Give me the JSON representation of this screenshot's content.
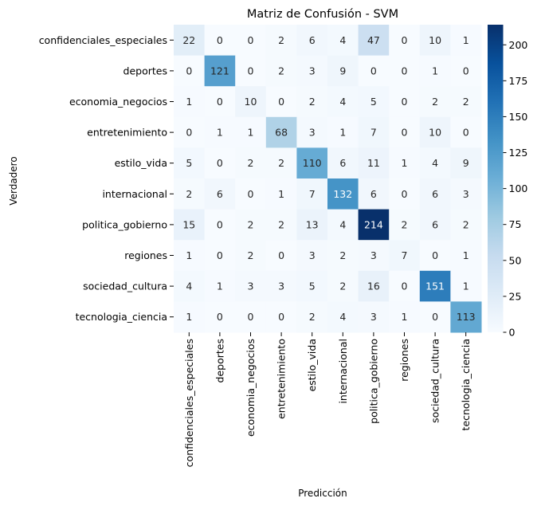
{
  "chart_data": {
    "type": "heatmap",
    "title": "Matriz de Confusión - SVM",
    "xlabel": "Predicción",
    "ylabel": "Verdadero",
    "categories": [
      "confidenciales_especiales",
      "deportes",
      "economia_negocios",
      "entretenimiento",
      "estilo_vida",
      "internacional",
      "politica_gobierno",
      "regiones",
      "sociedad_cultura",
      "tecnologia_ciencia"
    ],
    "matrix": [
      [
        22,
        0,
        0,
        2,
        6,
        4,
        47,
        0,
        10,
        1
      ],
      [
        0,
        121,
        0,
        2,
        3,
        9,
        0,
        0,
        1,
        0
      ],
      [
        1,
        0,
        10,
        0,
        2,
        4,
        5,
        0,
        2,
        2
      ],
      [
        0,
        1,
        1,
        68,
        3,
        1,
        7,
        0,
        10,
        0
      ],
      [
        5,
        0,
        2,
        2,
        110,
        6,
        11,
        1,
        4,
        9
      ],
      [
        2,
        6,
        0,
        1,
        7,
        132,
        6,
        0,
        6,
        3
      ],
      [
        15,
        0,
        2,
        2,
        13,
        4,
        214,
        2,
        6,
        2
      ],
      [
        1,
        0,
        2,
        0,
        3,
        2,
        3,
        7,
        0,
        1
      ],
      [
        4,
        1,
        3,
        3,
        5,
        2,
        16,
        0,
        151,
        1
      ],
      [
        1,
        0,
        0,
        0,
        2,
        4,
        3,
        1,
        0,
        113
      ]
    ],
    "colorbar": {
      "min": 0,
      "max": 214,
      "ticks": [
        0,
        25,
        50,
        75,
        100,
        125,
        150,
        175,
        200
      ],
      "colormap": "Blues"
    }
  }
}
